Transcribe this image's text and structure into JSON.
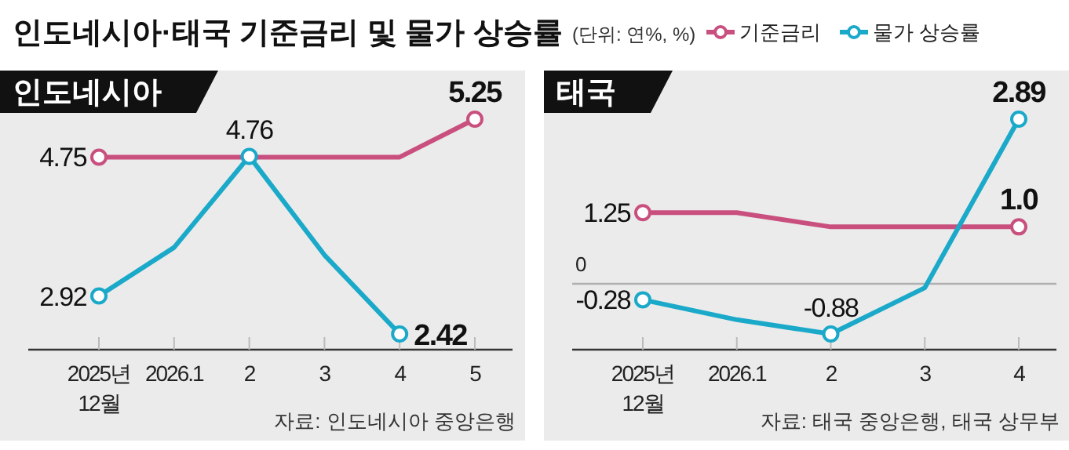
{
  "chart_data": [
    {
      "type": "other",
      "title": "인도네시아·태국 기준금리 및 물가 상승률",
      "subtitle": "(단위: 연%, %)"
    },
    {
      "type": "line",
      "title": "인도네시아",
      "categories": [
        "2025년 12월",
        "2026.1",
        "2",
        "3",
        "4",
        "5"
      ],
      "tick_labels": "x",
      "legend": "top right",
      "grid": false,
      "series": [
        {
          "name": "기준금리",
          "color": "#c9507e",
          "values": [
            4.75,
            4.75,
            4.75,
            4.75,
            4.75,
            5.25
          ],
          "value_labels": [
            "4.75",
            null,
            null,
            null,
            null,
            "5.25"
          ]
        },
        {
          "name": "물가 상승률",
          "color": "#1ba9c9",
          "values": [
            2.92,
            3.56,
            4.76,
            3.46,
            2.42,
            null
          ],
          "value_labels": [
            "2.92",
            null,
            "4.76",
            null,
            "2.42",
            null
          ]
        }
      ],
      "annotations": [
        "자료: 인도네시아 중앙은행"
      ]
    },
    {
      "type": "line",
      "title": "태국",
      "categories": [
        "2025년 12월",
        "2026.1",
        "2",
        "3",
        "4"
      ],
      "tick_labels": "x",
      "grid": false,
      "ref_lines": [
        {
          "axis": "y",
          "value": 0,
          "label": "0",
          "color": "#b0b0b0"
        }
      ],
      "series": [
        {
          "color": "#c9507e",
          "values": [
            1.25,
            1.25,
            1.0,
            1.0,
            1.0
          ],
          "value_labels": [
            "1.25",
            null,
            null,
            null,
            "1.0"
          ]
        },
        {
          "color": "#1ba9c9",
          "values": [
            -0.28,
            -0.63,
            -0.88,
            -0.07,
            2.89
          ],
          "value_labels": [
            "-0.28",
            null,
            "-0.88",
            null,
            "2.89"
          ]
        }
      ],
      "annotations": [
        "자료: 태국 중앙은행, 태국 상무부"
      ]
    }
  ]
}
